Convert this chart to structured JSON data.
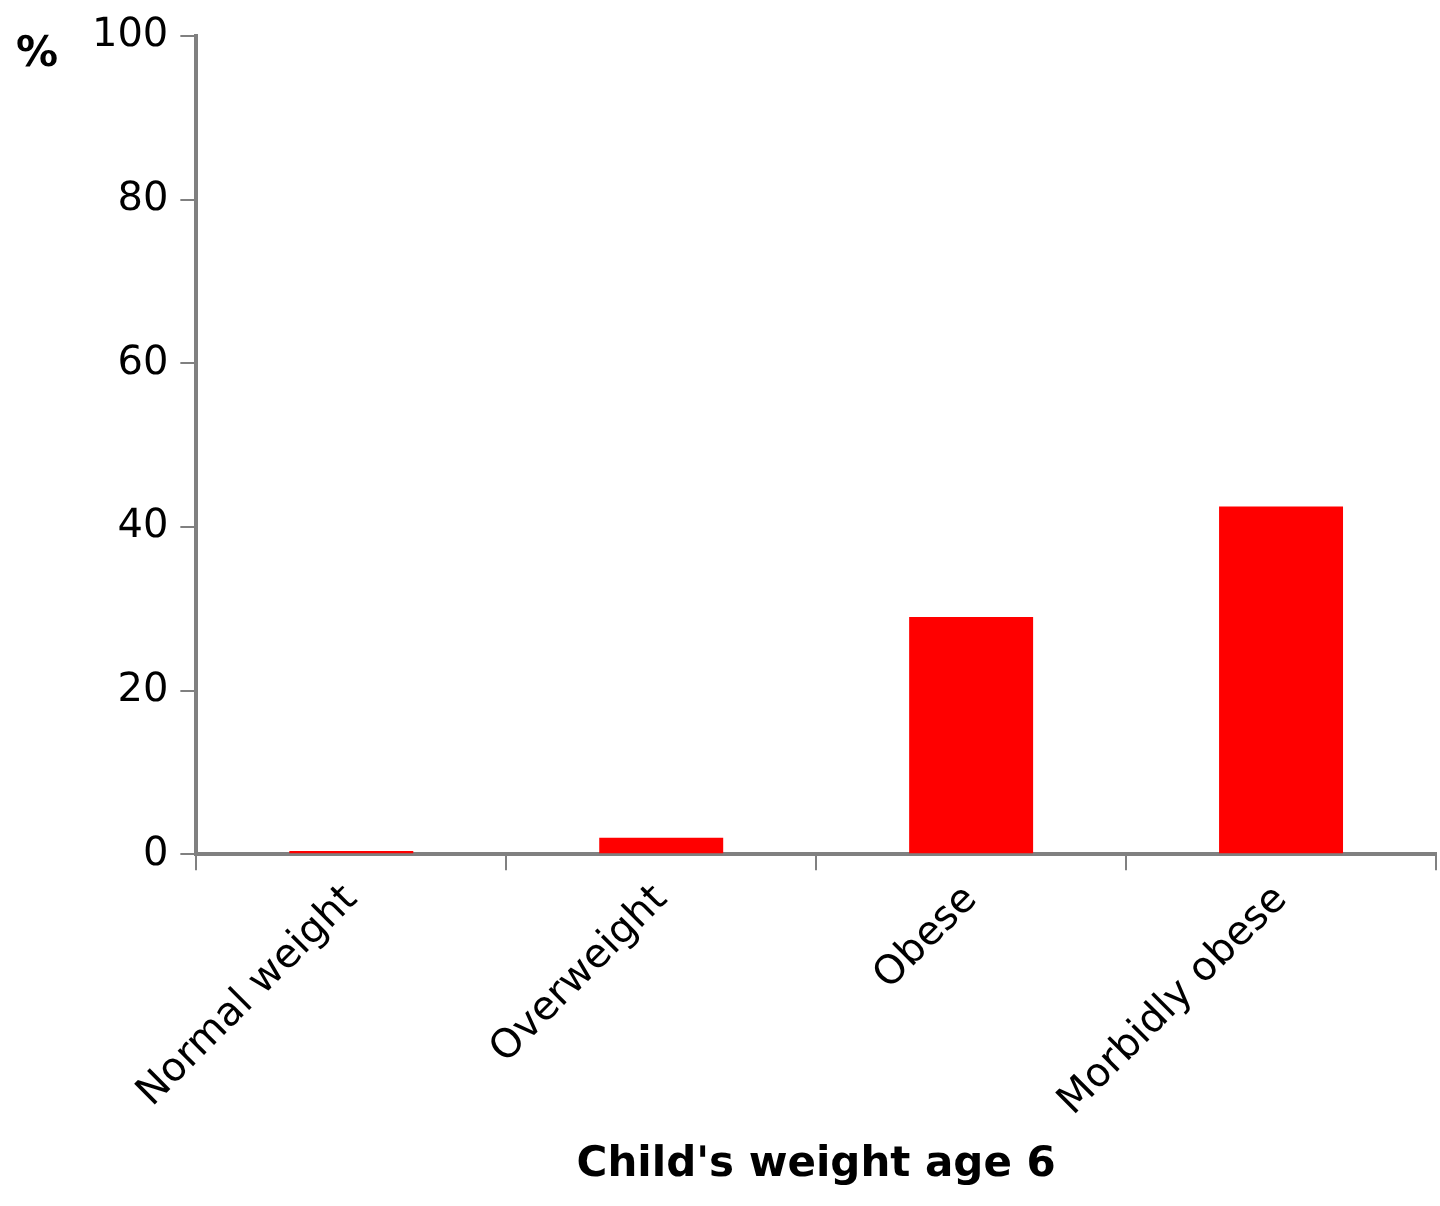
{
  "chart_data": {
    "type": "bar",
    "ylabel": "%",
    "xlabel": "Child's weight age 6",
    "categories": [
      "Normal weight",
      "Overweight",
      "Obese",
      "Morbidly obese"
    ],
    "values": [
      0.4,
      2,
      29,
      42.5
    ],
    "color": "#ff0000",
    "ylim": [
      0,
      100
    ],
    "yticks": [
      0,
      20,
      40,
      60,
      80,
      100
    ],
    "grid": false,
    "legend": false
  }
}
